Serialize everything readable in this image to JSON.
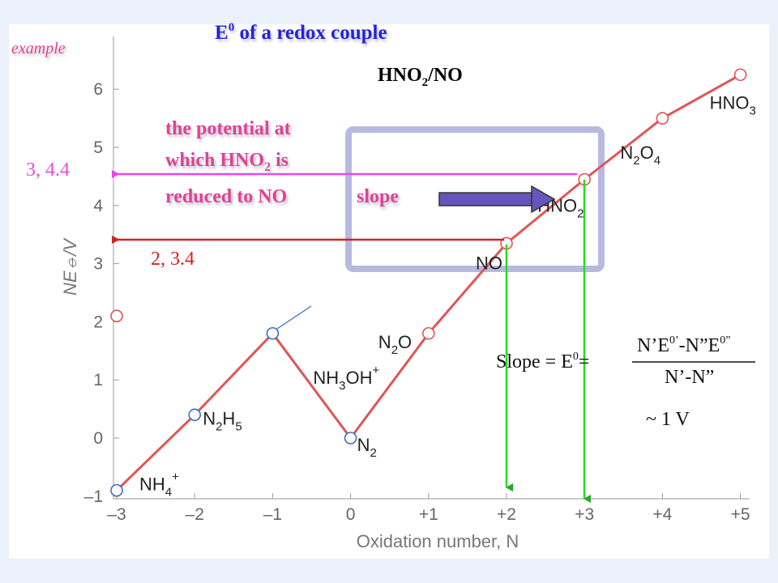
{
  "title_prefix": "E",
  "title_sup": "0",
  "title_suffix": " of a redox couple",
  "tag": "example",
  "couple": {
    "a": "HNO",
    "a_sub": "2",
    "b": "/NO"
  },
  "callout": {
    "line1": "the potential at",
    "line2_a": "which HNO",
    "line2_sub": "2",
    "line2_b": " is",
    "line3": "reduced to NO"
  },
  "slope_word": "slope",
  "readouts": {
    "hno2": "3, 4.4",
    "no": "2, 3.4"
  },
  "formula": {
    "lhs_a": "Slope = E",
    "lhs_sup": "0",
    "lhs_b": "=",
    "num_a": "N’E",
    "num_sup1": "0’",
    "num_b": "-N”E",
    "num_sup2": "0”",
    "den": "N’-N”",
    "approx": "~ 1 V"
  },
  "colors": {
    "line": "#e05555",
    "marker_red": "#e05555",
    "marker_blue": "#3a6cc0",
    "title": "#2222dd",
    "callout": "#e0409a",
    "readout_hno2": "#e04de0",
    "readout_no": "#d82020",
    "arrow_hno2": "#ee44ee",
    "arrow_no": "#d82020",
    "green": "#22dd22",
    "box": "#a8a8d8",
    "slope_arrow": "#6655bb"
  },
  "chart_data": {
    "type": "line",
    "xlabel": "Oxidation number, N",
    "ylabel": "NE⦵/V",
    "xlim": [
      -3,
      5
    ],
    "ylim": [
      -1,
      6.5
    ],
    "x_ticks": [
      "–3",
      "–2",
      "–1",
      "0",
      "+1",
      "+2",
      "+3",
      "+4",
      "+5"
    ],
    "y_ticks": [
      "–1",
      "0",
      "1",
      "2",
      "3",
      "4",
      "5",
      "6"
    ],
    "points": [
      {
        "x": -3,
        "y": -0.9,
        "label": "NH",
        "sub": "4",
        "sup": "+",
        "marker": "blue"
      },
      {
        "x": -2,
        "y": 0.4,
        "label": "N",
        "sub": "2",
        "label2": "H",
        "sub2": "5",
        "marker": "blue"
      },
      {
        "x": -1,
        "y": 1.8,
        "label": "NH",
        "sub": "3",
        "label2": "OH",
        "sup": "+",
        "marker": "blue"
      },
      {
        "x": 0,
        "y": 0,
        "label": "N",
        "sub": "2",
        "marker": "blue"
      },
      {
        "x": 1,
        "y": 1.8,
        "label": "N",
        "sub": "2",
        "label2": "O",
        "marker": "red"
      },
      {
        "x": 2,
        "y": 3.35,
        "label": "NO",
        "marker": "red"
      },
      {
        "x": 3,
        "y": 4.45,
        "label": "HNO",
        "sub": "2",
        "marker": "red"
      },
      {
        "x": 4,
        "y": 5.5,
        "label": "N",
        "sub": "2",
        "label2": "O",
        "sub2": "4",
        "marker": "red"
      },
      {
        "x": 5,
        "y": 6.25,
        "label": "HNO",
        "sub": "3",
        "marker": "red"
      }
    ],
    "extra_points": [
      {
        "x": -3,
        "y": 2.1,
        "marker": "red"
      }
    ],
    "grid": false
  }
}
